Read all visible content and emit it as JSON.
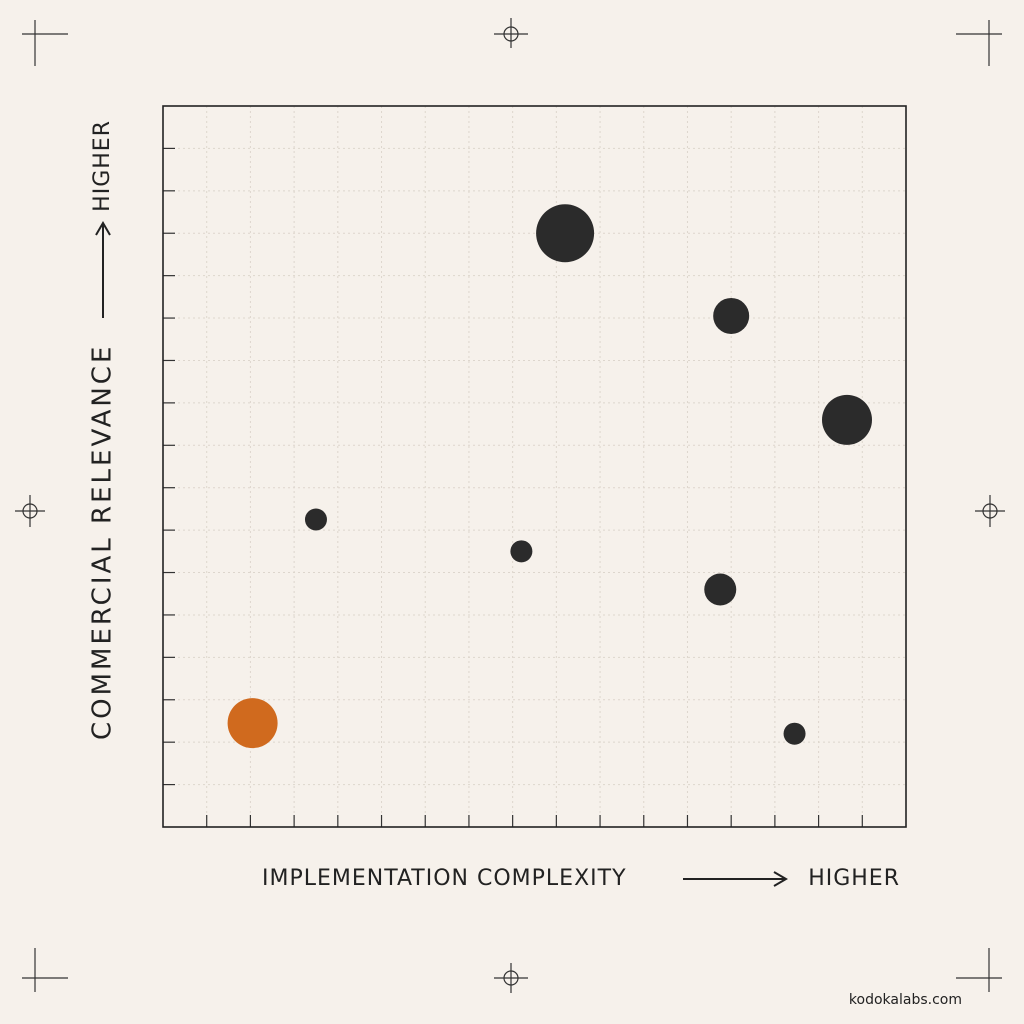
{
  "chart_data": {
    "type": "bubble",
    "x_label": "IMPLEMENTATION COMPLEXITY",
    "x_direction": "HIGHER",
    "y_label": "COMMERCIAL RELEVANCE",
    "y_direction": "HIGHER",
    "footer": "kodokalabs.com",
    "x": [
      9.2,
      13.0,
      15.65,
      3.5,
      8.2,
      12.75,
      14.45,
      2.05
    ],
    "values": [
      14.0,
      12.05,
      9.6,
      7.25,
      6.5,
      5.6,
      2.2,
      2.45
    ],
    "sizes": [
      29,
      18,
      25,
      11,
      11,
      16,
      11,
      25
    ],
    "colors": [
      "#2b2b2b",
      "#2b2b2b",
      "#2b2b2b",
      "#2b2b2b",
      "#2b2b2b",
      "#2b2b2b",
      "#2b2b2b",
      "#d06a1e"
    ],
    "xlim": [
      0,
      17
    ],
    "ylim": [
      0,
      17
    ],
    "xticks": [
      1,
      2,
      3,
      4,
      5,
      6,
      7,
      8,
      9,
      10,
      11,
      12,
      13,
      14,
      15,
      16
    ],
    "yticks": [
      1,
      2,
      3,
      4,
      5,
      6,
      7,
      8,
      9,
      10,
      11,
      12,
      13,
      14,
      15,
      16
    ],
    "grid": true
  }
}
